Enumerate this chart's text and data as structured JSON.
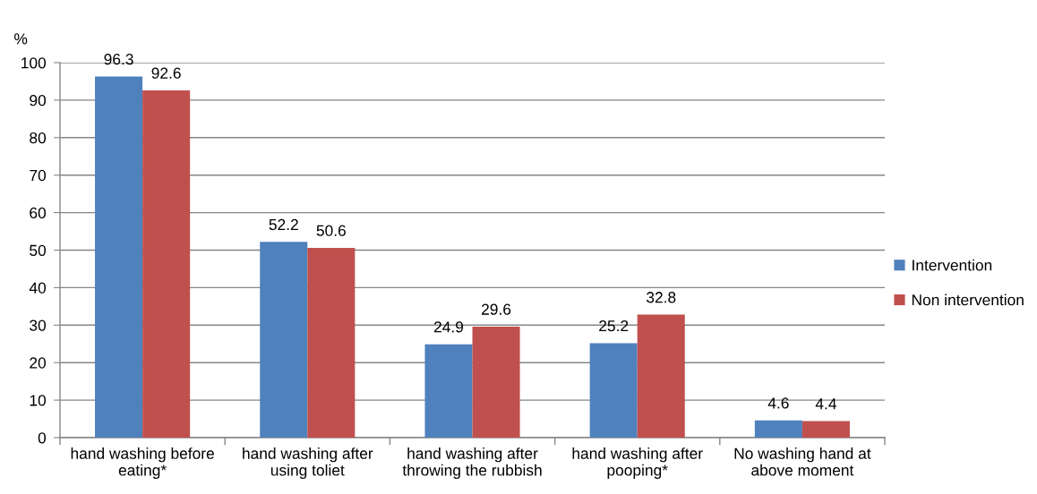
{
  "chart_data": {
    "type": "bar",
    "ylabel": "%",
    "categories": [
      "hand washing before eating*",
      "hand washing after using toliet",
      "hand washing after throwing the rubbish",
      "hand washing after pooping*",
      "No washing hand at above moment"
    ],
    "series": [
      {
        "name": "Intervention",
        "color": "#4f81bd",
        "values": [
          96.3,
          52.2,
          24.9,
          25.2,
          4.6
        ]
      },
      {
        "name": "Non intervention",
        "color": "#c0504d",
        "values": [
          92.6,
          50.6,
          29.6,
          32.8,
          4.4
        ]
      }
    ],
    "ylim": [
      0,
      100
    ],
    "yticks": [
      0,
      10,
      20,
      30,
      40,
      50,
      60,
      70,
      80,
      90,
      100
    ],
    "grid": "y",
    "legend": "right",
    "data_labels": true
  }
}
